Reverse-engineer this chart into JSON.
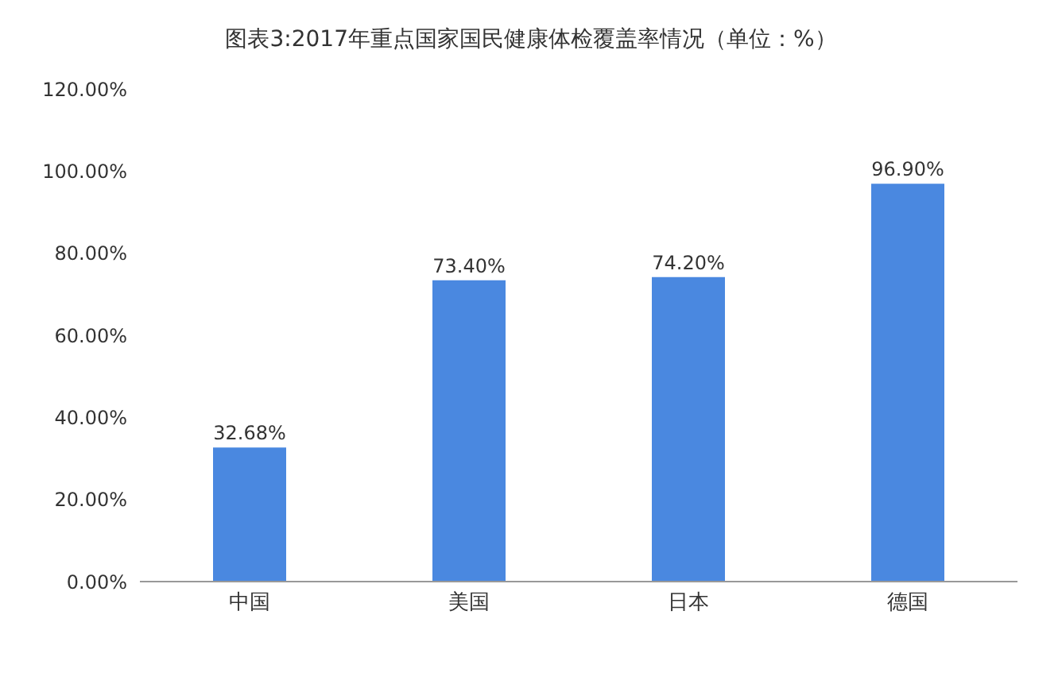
{
  "chart_data": {
    "type": "bar",
    "title": "图表3:2017年重点国家国民健康体检覆盖率情况（单位：%）",
    "categories": [
      "中国",
      "美国",
      "日本",
      "德国"
    ],
    "values": [
      32.68,
      73.4,
      74.2,
      96.9
    ],
    "value_labels": [
      "32.68%",
      "73.40%",
      "74.20%",
      "96.90%"
    ],
    "color": "#4a88e0",
    "ylim": [
      0,
      120
    ],
    "yticks": [
      {
        "value": 0,
        "label": "0.00%"
      },
      {
        "value": 20,
        "label": "20.00%"
      },
      {
        "value": 40,
        "label": "40.00%"
      },
      {
        "value": 60,
        "label": "60.00%"
      },
      {
        "value": 80,
        "label": "80.00%"
      },
      {
        "value": 100,
        "label": "100.00%"
      },
      {
        "value": 120,
        "label": "120.00%"
      }
    ],
    "grid": false
  }
}
